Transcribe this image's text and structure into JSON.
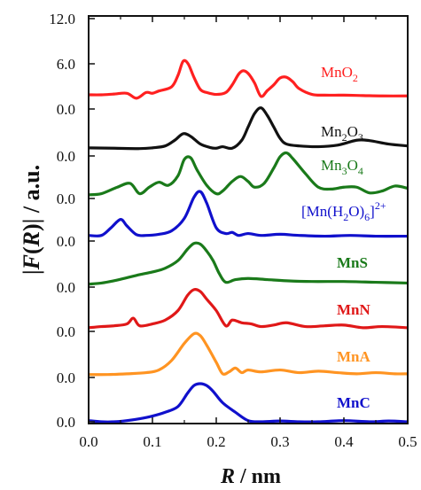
{
  "chart_data": {
    "type": "line",
    "xlabel_var": "R",
    "xlabel_unit": " / nm",
    "ylabel_prefix": "|",
    "ylabel_func": "F",
    "ylabel_open": "(",
    "ylabel_var": "R",
    "ylabel_close": ")| / a.u.",
    "xlim": [
      0.0,
      0.5
    ],
    "x_ticks": [
      "0.0",
      "0.1",
      "0.2",
      "0.3",
      "0.4",
      "0.5"
    ],
    "y_tick_labels": [
      "12.0",
      "6.0",
      "0.0",
      "0.0",
      "0.0",
      "0.0",
      "0.0",
      "0.0",
      "0.0",
      "0.0",
      "0.0"
    ],
    "grid": false,
    "series": [
      {
        "name": "MnO2",
        "label_parts": [
          {
            "t": "MnO"
          },
          {
            "t": "2",
            "sub": true
          }
        ],
        "bold": false,
        "color": "#ff2020",
        "baseline": 0,
        "x": [
          0.0,
          0.02,
          0.04,
          0.06,
          0.075,
          0.09,
          0.1,
          0.11,
          0.13,
          0.14,
          0.148,
          0.156,
          0.165,
          0.175,
          0.185,
          0.2,
          0.215,
          0.225,
          0.235,
          0.242,
          0.25,
          0.26,
          0.27,
          0.28,
          0.29,
          0.3,
          0.31,
          0.32,
          0.33,
          0.35,
          0.37,
          0.4,
          0.43,
          0.46,
          0.5
        ],
        "y": [
          1.4,
          1.4,
          1.6,
          1.8,
          0.5,
          2.0,
          1.8,
          2.4,
          3.5,
          6.5,
          10.2,
          9.5,
          6.0,
          2.8,
          2.0,
          1.5,
          2.0,
          4.0,
          6.8,
          7.7,
          7.0,
          4.5,
          1.0,
          2.5,
          4.0,
          5.8,
          6.0,
          4.8,
          3.0,
          1.5,
          1.3,
          1.3,
          1.2,
          1.1,
          1.1
        ]
      },
      {
        "name": "Mn2O3",
        "label_parts": [
          {
            "t": "Mn"
          },
          {
            "t": "2",
            "sub": true
          },
          {
            "t": "O"
          },
          {
            "t": "3",
            "sub": true
          }
        ],
        "bold": false,
        "color": "#111111",
        "baseline": 0,
        "x": [
          0.0,
          0.04,
          0.08,
          0.1,
          0.12,
          0.135,
          0.148,
          0.16,
          0.175,
          0.19,
          0.2,
          0.21,
          0.225,
          0.24,
          0.25,
          0.26,
          0.27,
          0.28,
          0.29,
          0.3,
          0.31,
          0.33,
          0.36,
          0.39,
          0.42,
          0.44,
          0.47,
          0.5
        ],
        "y": [
          0.5,
          0.4,
          0.3,
          0.5,
          1.0,
          2.5,
          4.2,
          3.5,
          1.5,
          0.6,
          0.4,
          0.8,
          0.4,
          2.5,
          6.0,
          9.5,
          11.0,
          9.0,
          6.0,
          3.0,
          1.5,
          1.0,
          0.8,
          1.2,
          2.5,
          2.4,
          1.5,
          1.0
        ]
      },
      {
        "name": "Mn3O4",
        "label_parts": [
          {
            "t": "Mn"
          },
          {
            "t": "3",
            "sub": true
          },
          {
            "t": "O"
          },
          {
            "t": "4",
            "sub": true
          }
        ],
        "bold": false,
        "color": "#1a7a1a",
        "baseline": 0,
        "x": [
          0.0,
          0.02,
          0.045,
          0.065,
          0.08,
          0.095,
          0.11,
          0.125,
          0.14,
          0.15,
          0.16,
          0.17,
          0.185,
          0.2,
          0.21,
          0.225,
          0.238,
          0.25,
          0.26,
          0.275,
          0.29,
          0.3,
          0.31,
          0.32,
          0.34,
          0.36,
          0.38,
          0.4,
          0.42,
          0.44,
          0.46,
          0.48,
          0.5
        ],
        "y": [
          0.5,
          0.8,
          2.5,
          3.5,
          0.8,
          2.5,
          3.8,
          3.0,
          5.5,
          9.8,
          10.2,
          7.0,
          3.0,
          0.8,
          1.5,
          4.0,
          5.3,
          4.0,
          2.5,
          3.5,
          7.5,
          10.5,
          11.5,
          10.0,
          6.0,
          2.5,
          2.0,
          2.5,
          2.5,
          1.0,
          1.5,
          2.8,
          2.2
        ]
      },
      {
        "name": "Mn(H2O)6 2+",
        "label_parts": [
          {
            "t": "[Mn(H"
          },
          {
            "t": "2",
            "sub": true
          },
          {
            "t": "O)"
          },
          {
            "t": "6",
            "sub": true
          },
          {
            "t": "]"
          },
          {
            "t": "2+",
            "sup": true
          }
        ],
        "bold": false,
        "color": "#1010cc",
        "baseline": 0,
        "x": [
          0.0,
          0.02,
          0.035,
          0.05,
          0.06,
          0.075,
          0.09,
          0.11,
          0.13,
          0.15,
          0.165,
          0.175,
          0.185,
          0.2,
          0.215,
          0.225,
          0.235,
          0.25,
          0.27,
          0.3,
          0.33,
          0.37,
          0.41,
          0.45,
          0.5
        ],
        "y": [
          1.0,
          1.0,
          3.0,
          5.2,
          3.5,
          1.2,
          1.0,
          1.3,
          2.2,
          5.5,
          11.0,
          12.5,
          9.5,
          3.0,
          1.5,
          1.8,
          1.0,
          1.5,
          1.0,
          1.3,
          1.0,
          0.8,
          1.0,
          0.8,
          0.8
        ]
      },
      {
        "name": "MnS",
        "label_parts": [
          {
            "t": "MnS"
          }
        ],
        "bold": true,
        "color": "#1a7a1a",
        "baseline": 0,
        "x": [
          0.0,
          0.02,
          0.04,
          0.06,
          0.08,
          0.1,
          0.12,
          0.14,
          0.155,
          0.165,
          0.175,
          0.185,
          0.195,
          0.205,
          0.215,
          0.23,
          0.25,
          0.28,
          0.31,
          0.35,
          0.4,
          0.45,
          0.5
        ],
        "y": [
          0.3,
          0.6,
          1.2,
          2.0,
          2.8,
          3.5,
          4.5,
          6.5,
          9.5,
          11.0,
          10.8,
          9.0,
          6.5,
          3.0,
          0.8,
          1.5,
          1.8,
          1.5,
          1.2,
          1.0,
          1.0,
          0.8,
          0.6
        ]
      },
      {
        "name": "MnN",
        "label_parts": [
          {
            "t": "MnN"
          }
        ],
        "bold": true,
        "color": "#e01818",
        "baseline": 0,
        "x": [
          0.0,
          0.02,
          0.04,
          0.06,
          0.07,
          0.08,
          0.1,
          0.12,
          0.14,
          0.155,
          0.165,
          0.175,
          0.185,
          0.2,
          0.215,
          0.225,
          0.24,
          0.255,
          0.27,
          0.29,
          0.31,
          0.34,
          0.37,
          0.4,
          0.43,
          0.46,
          0.5
        ],
        "y": [
          0.5,
          0.8,
          1.0,
          1.5,
          3.0,
          1.0,
          1.5,
          2.5,
          5.0,
          9.0,
          10.5,
          10.0,
          8.0,
          5.0,
          1.0,
          2.5,
          1.8,
          1.5,
          0.8,
          1.2,
          1.8,
          0.8,
          1.0,
          1.2,
          0.5,
          0.8,
          0.5
        ]
      },
      {
        "name": "MnA",
        "label_parts": [
          {
            "t": "MnA"
          }
        ],
        "bold": true,
        "color": "#ff9422",
        "baseline": 0,
        "x": [
          0.0,
          0.03,
          0.06,
          0.09,
          0.11,
          0.13,
          0.15,
          0.165,
          0.175,
          0.185,
          0.2,
          0.21,
          0.22,
          0.23,
          0.24,
          0.25,
          0.27,
          0.3,
          0.33,
          0.36,
          0.39,
          0.42,
          0.45,
          0.48,
          0.5
        ],
        "y": [
          0.3,
          0.3,
          0.5,
          0.8,
          1.5,
          4.0,
          8.5,
          11.0,
          10.5,
          8.0,
          3.5,
          0.5,
          1.0,
          2.0,
          0.8,
          1.5,
          1.0,
          1.5,
          0.8,
          1.2,
          0.8,
          0.5,
          0.8,
          0.5,
          0.5
        ]
      },
      {
        "name": "MnC",
        "label_parts": [
          {
            "t": "MnC"
          }
        ],
        "bold": true,
        "color": "#1010cc",
        "baseline": 0,
        "x": [
          0.0,
          0.02,
          0.04,
          0.06,
          0.08,
          0.1,
          0.12,
          0.14,
          0.155,
          0.165,
          0.175,
          0.185,
          0.195,
          0.21,
          0.23,
          0.25,
          0.27,
          0.3,
          0.33,
          0.36,
          0.4,
          0.44,
          0.47,
          0.5
        ],
        "y": [
          0.3,
          0.0,
          0.0,
          0.3,
          0.8,
          1.5,
          2.5,
          4.0,
          7.5,
          9.5,
          10.0,
          9.5,
          8.0,
          5.0,
          2.5,
          0.3,
          0.0,
          0.2,
          0.0,
          0.0,
          0.3,
          0.0,
          0.2,
          0.0
        ]
      }
    ],
    "colors": {
      "axis": "#111111"
    }
  }
}
